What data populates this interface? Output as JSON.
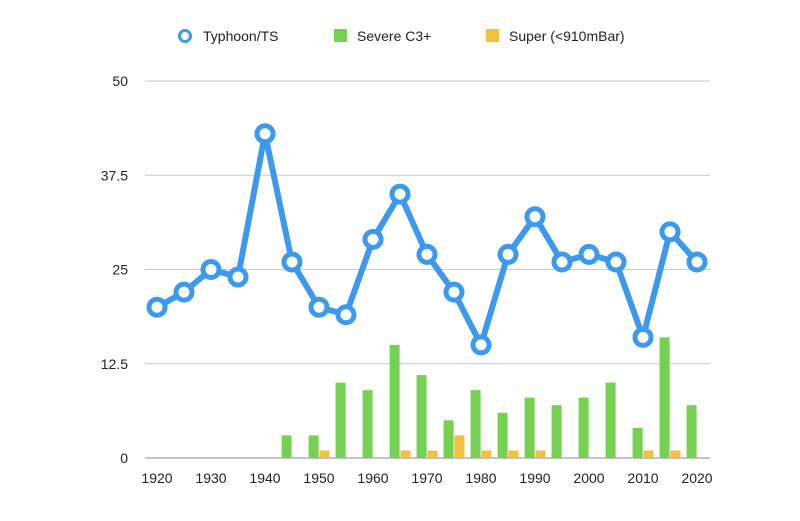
{
  "chart_data": {
    "type": "bar",
    "legend_position": "top",
    "grid": true,
    "ylim": [
      0,
      50
    ],
    "yticks": [
      "0",
      "12.5",
      "25",
      "37.5",
      "50"
    ],
    "xticks": [
      "1920",
      "1930",
      "1940",
      "1950",
      "1960",
      "1970",
      "1980",
      "1990",
      "2000",
      "2010",
      "2020"
    ],
    "series": [
      {
        "name": "Typhoon/TS",
        "kind": "line",
        "color": "#3d99ee",
        "x": [
          1920,
          1925,
          1930,
          1935,
          1940,
          1945,
          1950,
          1955,
          1960,
          1965,
          1970,
          1975,
          1980,
          1985,
          1990,
          1995,
          2000,
          2005,
          2010,
          2015,
          2020
        ],
        "values": [
          20,
          22,
          25,
          24,
          43,
          26,
          20,
          19,
          29,
          35,
          27,
          22,
          15,
          27,
          32,
          26,
          27,
          26,
          16,
          30,
          26
        ]
      },
      {
        "name": "Severe C3+",
        "kind": "bar",
        "color": "#76d152",
        "x": [
          1944,
          1949,
          1954,
          1959,
          1964,
          1969,
          1974,
          1979,
          1984,
          1989,
          1994,
          1999,
          2004,
          2009,
          2014,
          2019
        ],
        "values": [
          3,
          3,
          10,
          9,
          15,
          11,
          5,
          9,
          6,
          8,
          7,
          8,
          10,
          4,
          16,
          7
        ]
      },
      {
        "name": "Super (<910mBar)",
        "kind": "bar",
        "color": "#f2bf3f",
        "x": [
          1951,
          1966,
          1971,
          1976,
          1981,
          1986,
          1991,
          2011,
          2016
        ],
        "values": [
          1,
          1,
          1,
          3,
          1,
          1,
          1,
          1,
          1
        ]
      }
    ]
  }
}
